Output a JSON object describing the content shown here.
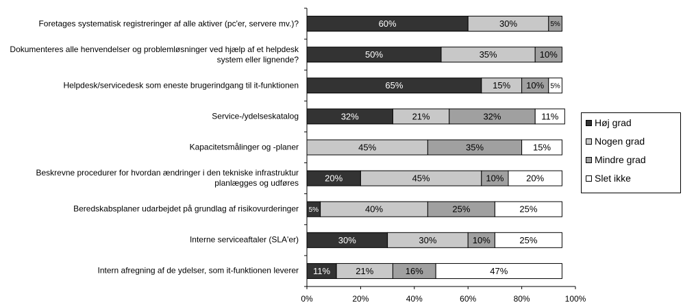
{
  "chart_data": {
    "type": "stacked_barh",
    "categories": [
      "Foretages systematisk registreringer af alle aktiver (pc'er, servere mv.)?",
      "Dokumenteres alle henvendelser og problemløsninger ved hjælp af et helpdesk system eller lignende?",
      "Helpdesk/servicedesk som eneste brugerindgang til it-funktionen",
      "Service-/ydelseskatalog",
      "Kapacitetsmålinger og -planer",
      "Beskrevne procedurer for hvordan ændringer i den tekniske infrastruktur planlægges og udføres",
      "Beredskabsplaner udarbejdet på grundlag af risikovurderinger",
      "Interne serviceaftaler (SLA'er)",
      "Intern afregning af de ydelser, som it-funktionen leverer"
    ],
    "series": [
      {
        "name": "Høj grad",
        "color": "#333333",
        "values": [
          60,
          50,
          65,
          32,
          null,
          20,
          5,
          30,
          11
        ],
        "value_labels": [
          "60%",
          "50%",
          "65%",
          "32%",
          null,
          "20%",
          "5%",
          "30%",
          "11%"
        ]
      },
      {
        "name": "Nogen grad",
        "color": "#c8c8c8",
        "values": [
          30,
          35,
          15,
          21,
          45,
          45,
          40,
          30,
          21
        ],
        "value_labels": [
          "30%",
          "35%",
          "15%",
          "21%",
          "45%",
          "45%",
          "40%",
          "30%",
          "21%"
        ]
      },
      {
        "name": "Mindre grad",
        "color": "#a0a0a0",
        "values": [
          5,
          10,
          10,
          32,
          35,
          10,
          25,
          10,
          16
        ],
        "value_labels": [
          "5%",
          "10%",
          "10%",
          "32%",
          "35%",
          "10%",
          "25%",
          "10%",
          "16%"
        ]
      },
      {
        "name": "Slet ikke",
        "color": "#ffffff",
        "values": [
          null,
          null,
          5,
          11,
          15,
          20,
          25,
          25,
          47
        ],
        "value_labels": [
          null,
          null,
          "5%",
          "11%",
          "15%",
          "20%",
          "25%",
          "25%",
          "47%"
        ]
      }
    ],
    "xlim": [
      0,
      100
    ],
    "xticks": [
      {
        "value": 0,
        "label": "0%"
      },
      {
        "value": 20,
        "label": "20%"
      },
      {
        "value": 40,
        "label": "40%"
      },
      {
        "value": 60,
        "label": "60%"
      },
      {
        "value": 80,
        "label": "80%"
      },
      {
        "value": 100,
        "label": "100%"
      }
    ],
    "legend": "right"
  }
}
